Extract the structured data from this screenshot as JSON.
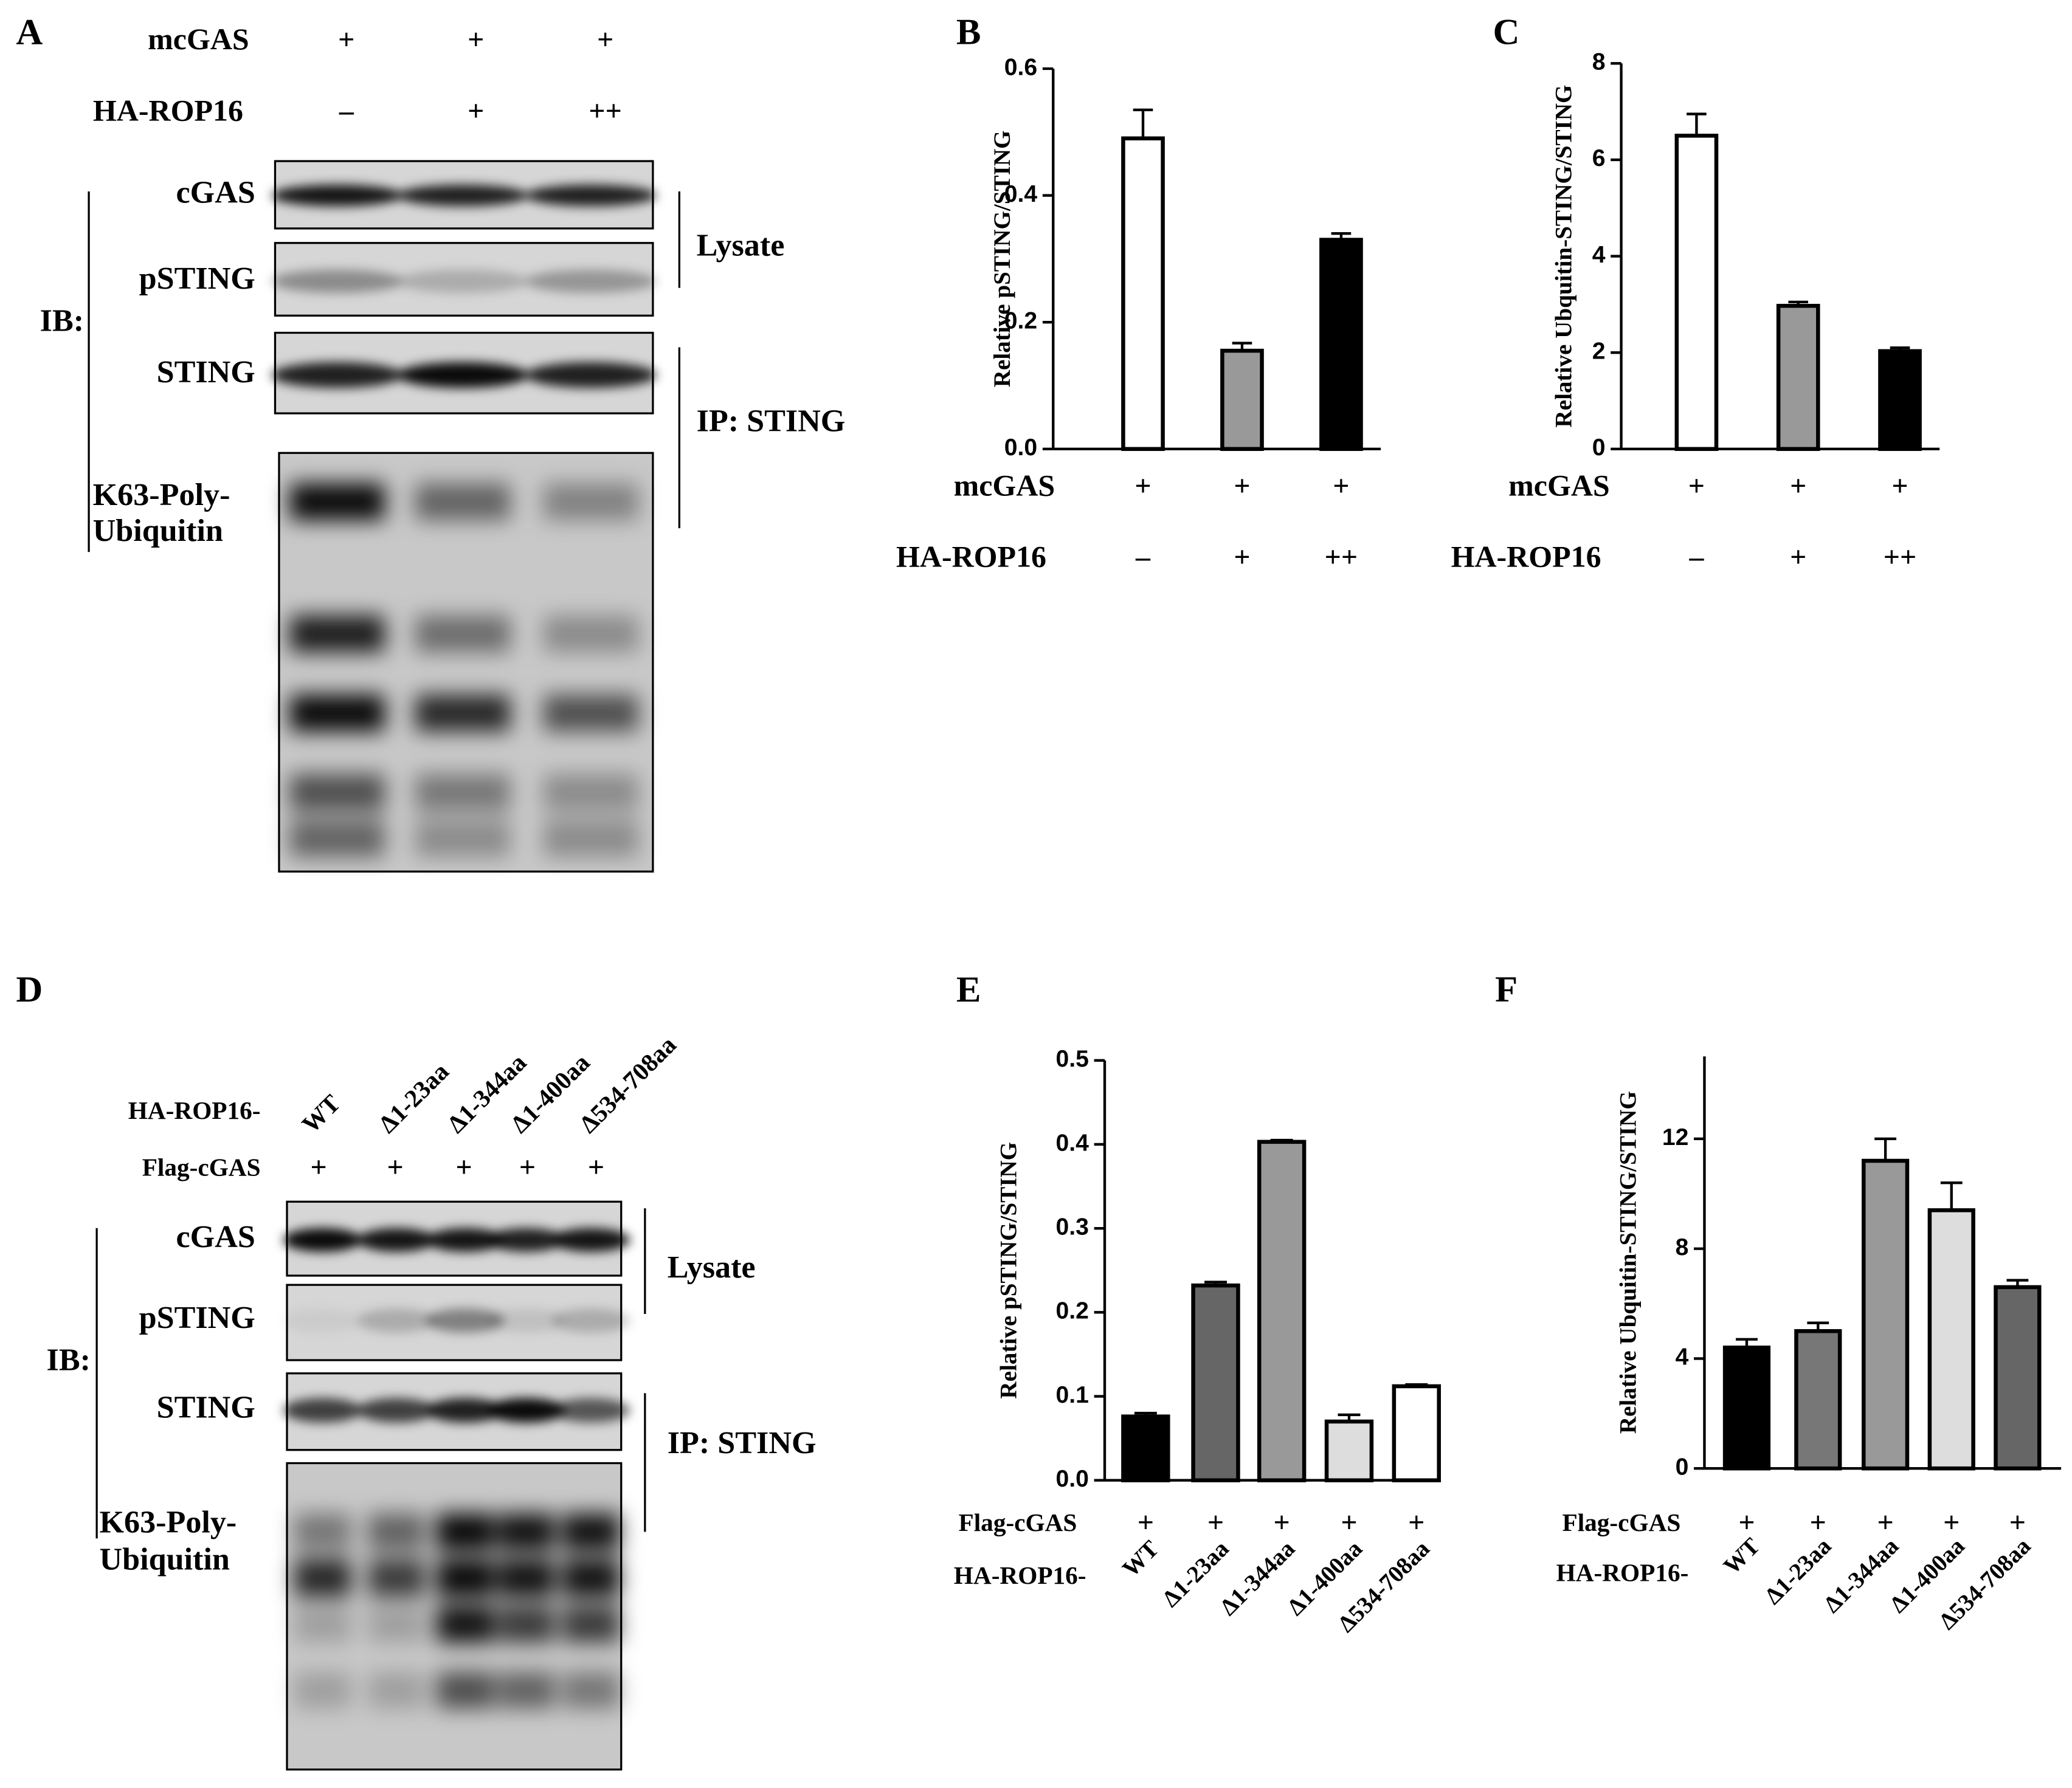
{
  "chart_data": [
    {
      "type": "bar",
      "panel": "B",
      "ylabel": "Relative pSTING/STING",
      "values": [
        0.49,
        0.155,
        0.33
      ],
      "errors": [
        0.045,
        0.012,
        0.01
      ],
      "colors": [
        "#ffffff",
        "#999999",
        "#000000"
      ],
      "ylim": [
        0,
        0.6
      ],
      "yticks": [
        {
          "value": 0,
          "label": "0.0"
        },
        0.2,
        0.4,
        0.6
      ],
      "conditions": [
        {
          "name": "mcGAS",
          "values": [
            "+",
            "+",
            "+"
          ]
        },
        {
          "name": "HA-ROP16",
          "values": [
            "–",
            "+",
            "++"
          ]
        }
      ]
    },
    {
      "type": "bar",
      "panel": "C",
      "ylabel": "Relative Ubquitin-STING/STING",
      "values": [
        6.5,
        2.97,
        2.03
      ],
      "errors": [
        0.45,
        0.08,
        0.07
      ],
      "colors": [
        "#ffffff",
        "#999999",
        "#000000"
      ],
      "ylim": [
        0,
        8
      ],
      "yticks": [
        0,
        2,
        4,
        6,
        8
      ],
      "conditions": [
        {
          "name": "mcGAS",
          "values": [
            "+",
            "+",
            "+"
          ]
        },
        {
          "name": "HA-ROP16",
          "values": [
            "–",
            "+",
            "++"
          ]
        }
      ]
    },
    {
      "type": "bar",
      "panel": "E",
      "ylabel": "Relative pSTING/STING",
      "categories_label": "HA-ROP16-",
      "categories": [
        "WT",
        "Δ1-23aa",
        "Δ1-344aa",
        "Δ1-400aa",
        "Δ534-708aa"
      ],
      "values": [
        0.076,
        0.232,
        0.403,
        0.07,
        0.112
      ],
      "errors": [
        0.004,
        0.004,
        0.002,
        0.008,
        0.002
      ],
      "colors": [
        "#000000",
        "#666666",
        "#999999",
        "#dddddd",
        "#ffffff"
      ],
      "ylim": [
        0,
        0.5
      ],
      "yticks": [
        {
          "value": 0,
          "label": "0.0"
        },
        0.1,
        0.2,
        0.3,
        0.4,
        0.5
      ],
      "conditions": [
        {
          "name": "Flag-cGAS",
          "values": [
            "+",
            "+",
            "+",
            "+",
            "+"
          ]
        }
      ]
    },
    {
      "type": "bar",
      "panel": "F",
      "ylabel": "Relative Ubquitin-STING/STING",
      "categories_label": "HA-ROP16-",
      "categories": [
        "WT",
        "Δ1-23aa",
        "Δ1-344aa",
        "Δ1-400aa",
        "Δ534-708aa"
      ],
      "values": [
        4.4,
        5.0,
        11.2,
        9.4,
        6.6
      ],
      "errors": [
        0.3,
        0.3,
        0.8,
        1.0,
        0.25
      ],
      "colors": [
        "#000000",
        "#777777",
        "#999999",
        "#dddddd",
        "#666666"
      ],
      "ylim": [
        0,
        15
      ],
      "yticks": [
        0,
        4,
        8,
        12
      ],
      "conditions": [
        {
          "name": "Flag-cGAS",
          "values": [
            "+",
            "+",
            "+",
            "+",
            "+"
          ]
        }
      ]
    }
  ],
  "blots": [
    {
      "panel": "A",
      "conditions": [
        {
          "name": "mcGAS",
          "values": [
            "+",
            "+",
            "+"
          ]
        },
        {
          "name": "HA-ROP16",
          "values": [
            "–",
            "+",
            "++"
          ]
        }
      ],
      "ib": "IB:",
      "bands": [
        "cGAS",
        "pSTING",
        "STING"
      ],
      "ub_label": [
        "K63-Poly-",
        "Ubiquitin"
      ],
      "brackets": [
        "Lysate",
        "IP: STING"
      ]
    },
    {
      "panel": "D",
      "lanes_label": "HA-ROP16-",
      "lanes": [
        "WT",
        "Δ1-23aa",
        "Δ1-344aa",
        "Δ1-400aa",
        "Δ534-708aa"
      ],
      "conditions": [
        {
          "name": "Flag-cGAS",
          "values": [
            "+",
            "+",
            "+",
            "+",
            "+"
          ]
        }
      ],
      "ib": "IB:",
      "bands": [
        "cGAS",
        "pSTING",
        "STING"
      ],
      "ub_label": [
        "K63-Poly-",
        "Ubiquitin"
      ],
      "brackets": [
        "Lysate",
        "IP: STING"
      ]
    }
  ]
}
